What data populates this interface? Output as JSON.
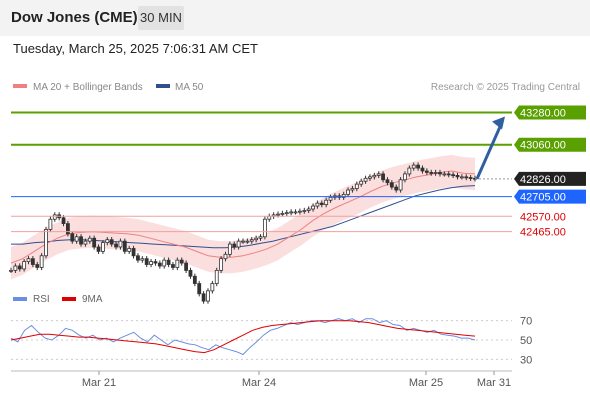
{
  "header": {
    "title": "Dow Jones (CME)",
    "timeframe": "30 MIN",
    "timestamp": "Tuesday, March 25, 2025 7:06:31 AM CET"
  },
  "legend": {
    "ma20_label": "MA 20 + Bollinger Bands",
    "ma20_color": "#f08080",
    "ma50_label": "MA 50",
    "ma50_color": "#2f4f8f"
  },
  "credit": "Research © 2025 Trading Central",
  "colors": {
    "up": "#5aa000",
    "down": "#e00000",
    "pivot": "#1e64ff",
    "last": "#222222",
    "arrow": "#2f5fa0",
    "candle": "#333333",
    "band": "#fbdede",
    "rsi": "#6a8ee0",
    "rsi_ma": "#e00000"
  },
  "chart_data": [
    {
      "type": "candlestick",
      "title": "Dow Jones (CME)",
      "y_range": [
        42100,
        43400
      ],
      "x_ticks": [
        "Mar 21",
        "Mar 24",
        "Mar 25",
        "Mar 31"
      ],
      "levels": [
        {
          "value": 43280.0,
          "label": "43280.00",
          "role": "resistance"
        },
        {
          "value": 43060.0,
          "label": "43060.00",
          "role": "resistance"
        },
        {
          "value": 42826.0,
          "label": "42826.00",
          "role": "last"
        },
        {
          "value": 42705.0,
          "label": "42705.00",
          "role": "pivot"
        },
        {
          "value": 42570.0,
          "label": "42570.00",
          "role": "support"
        },
        {
          "value": 42465.0,
          "label": "42465.00",
          "role": "support"
        }
      ],
      "close": [
        42200,
        42230,
        42210,
        42260,
        42280,
        42240,
        42220,
        42300,
        42480,
        42550,
        42580,
        42560,
        42520,
        42450,
        42400,
        42430,
        42380,
        42400,
        42420,
        42360,
        42330,
        42390,
        42410,
        42380,
        42360,
        42400,
        42330,
        42350,
        42300,
        42270,
        42280,
        42240,
        42260,
        42250,
        42230,
        42270,
        42240,
        42220,
        42270,
        42250,
        42200,
        42160,
        42110,
        42040,
        41990,
        42060,
        42110,
        42200,
        42280,
        42310,
        42380,
        42360,
        42400,
        42400,
        42400,
        42410,
        42420,
        42430
      ],
      "close_2": [
        42550,
        42570,
        42580,
        42585,
        42590,
        42595,
        42600,
        42600,
        42605,
        42610,
        42620,
        42640,
        42660,
        42650,
        42680,
        42700,
        42710,
        42700,
        42720,
        42750,
        42760,
        42790,
        42810,
        42830,
        42840,
        42850,
        42860,
        42820,
        42800,
        42770,
        42750,
        42820,
        42860,
        42900,
        42920,
        42900,
        42880,
        42870,
        42865,
        42870,
        42860,
        42860,
        42855,
        42850,
        42840,
        42840,
        42835,
        42830,
        42826
      ],
      "ma20": [
        42250,
        42280,
        42330,
        42380,
        42420,
        42450,
        42460,
        42465,
        42460,
        42455,
        42450,
        42440,
        42420,
        42400,
        42380,
        42360,
        42330,
        42300,
        42290,
        42290,
        42300,
        42320,
        42345,
        42380,
        42430,
        42480,
        42540,
        42590,
        42630,
        42665,
        42700,
        42740,
        42775,
        42800,
        42820,
        42840,
        42855,
        42870,
        42880,
        42865,
        42860
      ],
      "ma50": [
        42380,
        42380,
        42390,
        42395,
        42405,
        42410,
        42410,
        42405,
        42400,
        42395,
        42390,
        42385,
        42380,
        42375,
        42370,
        42365,
        42360,
        42355,
        42355,
        42360,
        42370,
        42385,
        42400,
        42420,
        42440,
        42460,
        42480,
        42500,
        42530,
        42560,
        42590,
        42620,
        42650,
        42680,
        42710,
        42730,
        42750,
        42765,
        42775,
        42780
      ],
      "projection": {
        "from": 42826.0,
        "to": 43280.0
      }
    },
    {
      "type": "line",
      "title": "RSI",
      "series": [
        {
          "name": "RSI",
          "values": [
            52,
            48,
            60,
            65,
            58,
            52,
            50,
            55,
            62,
            60,
            55,
            52,
            55,
            50,
            52,
            48,
            52,
            55,
            58,
            52,
            48,
            55,
            50,
            45,
            50,
            48,
            46,
            45,
            42,
            40,
            45,
            42,
            40,
            38,
            35,
            42,
            48,
            55,
            60,
            62,
            65,
            68,
            66,
            68,
            70,
            70,
            68,
            70,
            72,
            70,
            72,
            68,
            72,
            72,
            68,
            70,
            66,
            65,
            60,
            62,
            60,
            58,
            60,
            56,
            55,
            54,
            52,
            52,
            50
          ]
        },
        {
          "name": "9MA",
          "values": [
            50,
            52,
            54,
            56,
            56,
            55,
            54,
            53,
            53,
            52,
            51,
            50,
            49,
            48,
            47,
            46,
            44,
            42,
            40,
            38,
            37,
            40,
            45,
            50,
            55,
            60,
            63,
            65,
            66,
            67,
            68,
            69,
            70,
            70,
            70,
            70,
            69,
            68,
            66,
            64,
            62,
            61,
            60,
            59,
            58,
            57,
            56,
            55,
            54
          ]
        }
      ],
      "y_ticks": [
        70,
        50,
        30
      ],
      "y_range": [
        20,
        80
      ]
    }
  ],
  "rsi_legend": {
    "rsi_label": "RSI",
    "ma_label": "9MA"
  }
}
